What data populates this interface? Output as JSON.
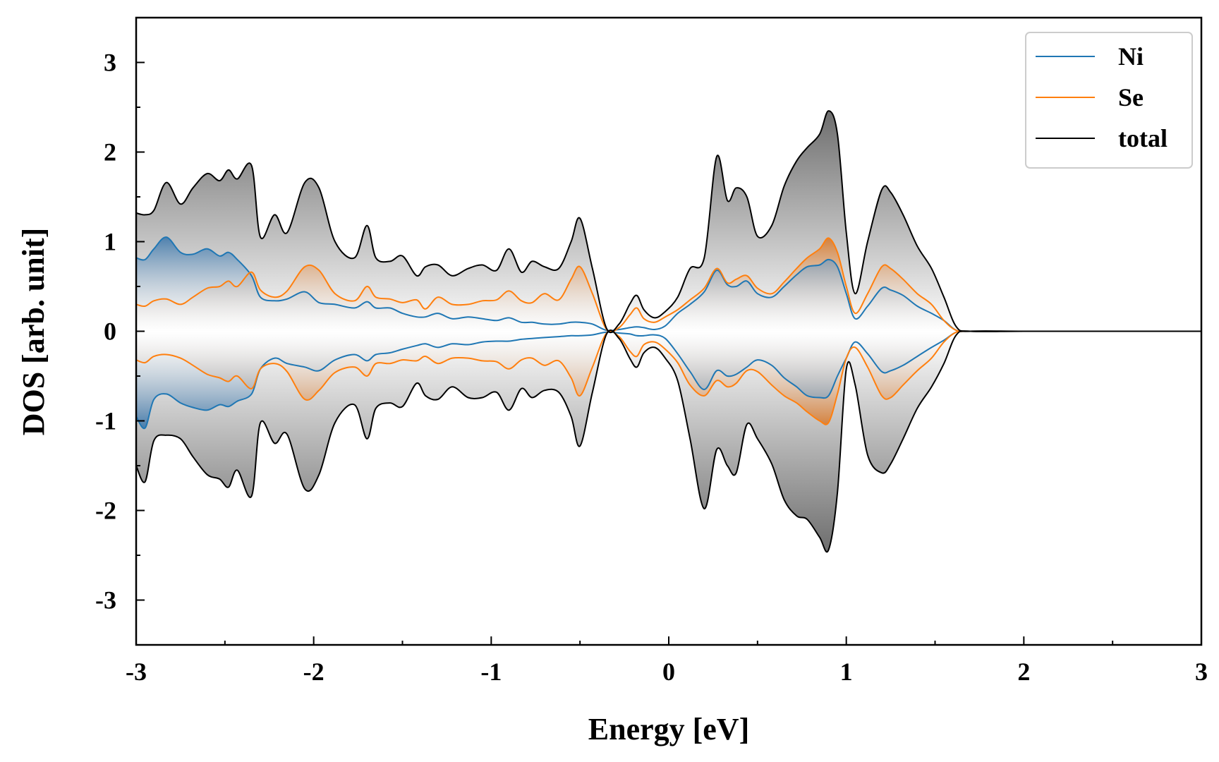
{
  "chart_data": {
    "type": "area",
    "title": "",
    "xlabel": "Energy [eV]",
    "ylabel": "DOS [arb. unit]",
    "xlim": [
      -3,
      3
    ],
    "ylim": [
      -3.5,
      3.5
    ],
    "xticks": [
      -3,
      -2,
      -1,
      0,
      1,
      2,
      3
    ],
    "xtick_labels": [
      "-3",
      "-2",
      "-1",
      "0",
      "1",
      "2",
      "3"
    ],
    "yticks": [
      -3,
      -2,
      -1,
      0,
      1,
      2,
      3
    ],
    "ytick_labels": [
      "-3",
      "-2",
      "-1",
      "0",
      "1",
      "2",
      "3"
    ],
    "legend_position": "top-right",
    "x": [
      -3.0,
      -2.95,
      -2.9,
      -2.83,
      -2.75,
      -2.68,
      -2.6,
      -2.53,
      -2.48,
      -2.43,
      -2.35,
      -2.3,
      -2.22,
      -2.15,
      -2.05,
      -1.97,
      -1.88,
      -1.77,
      -1.7,
      -1.65,
      -1.57,
      -1.5,
      -1.42,
      -1.37,
      -1.3,
      -1.22,
      -1.13,
      -1.05,
      -0.97,
      -0.9,
      -0.83,
      -0.77,
      -0.7,
      -0.62,
      -0.55,
      -0.5,
      -0.43,
      -0.35,
      -0.28,
      -0.22,
      -0.18,
      -0.14,
      -0.08,
      -0.02,
      0.05,
      0.12,
      0.2,
      0.27,
      0.33,
      0.38,
      0.44,
      0.5,
      0.58,
      0.65,
      0.72,
      0.78,
      0.85,
      0.9,
      0.95,
      1.0,
      1.05,
      1.12,
      1.2,
      1.25,
      1.32,
      1.4,
      1.48,
      1.55,
      1.62,
      1.7,
      2.0,
      2.5,
      3.0
    ],
    "series": [
      {
        "name": "Ni",
        "color": "#1f77b4",
        "up": [
          0.82,
          0.8,
          0.92,
          1.05,
          0.88,
          0.86,
          0.92,
          0.84,
          0.88,
          0.8,
          0.62,
          0.38,
          0.34,
          0.36,
          0.44,
          0.32,
          0.3,
          0.26,
          0.33,
          0.26,
          0.26,
          0.2,
          0.16,
          0.16,
          0.2,
          0.14,
          0.16,
          0.14,
          0.12,
          0.15,
          0.1,
          0.1,
          0.08,
          0.08,
          0.1,
          0.1,
          0.08,
          0.01,
          0.02,
          0.04,
          0.05,
          0.04,
          0.02,
          0.06,
          0.2,
          0.3,
          0.44,
          0.68,
          0.52,
          0.5,
          0.56,
          0.42,
          0.38,
          0.5,
          0.63,
          0.72,
          0.74,
          0.8,
          0.72,
          0.42,
          0.14,
          0.28,
          0.48,
          0.46,
          0.4,
          0.28,
          0.2,
          0.12,
          0.01,
          0.0,
          0.0,
          0.0,
          0.0
        ],
        "down": [
          -0.95,
          -1.08,
          -0.76,
          -0.7,
          -0.8,
          -0.85,
          -0.88,
          -0.82,
          -0.84,
          -0.78,
          -0.7,
          -0.42,
          -0.3,
          -0.36,
          -0.4,
          -0.44,
          -0.32,
          -0.26,
          -0.33,
          -0.26,
          -0.24,
          -0.2,
          -0.16,
          -0.14,
          -0.18,
          -0.14,
          -0.15,
          -0.12,
          -0.11,
          -0.11,
          -0.09,
          -0.08,
          -0.07,
          -0.06,
          -0.05,
          -0.05,
          -0.04,
          -0.01,
          -0.02,
          -0.03,
          -0.05,
          -0.05,
          -0.04,
          -0.08,
          -0.25,
          -0.45,
          -0.65,
          -0.44,
          -0.5,
          -0.48,
          -0.4,
          -0.32,
          -0.38,
          -0.52,
          -0.62,
          -0.72,
          -0.74,
          -0.72,
          -0.5,
          -0.3,
          -0.12,
          -0.25,
          -0.45,
          -0.44,
          -0.38,
          -0.28,
          -0.18,
          -0.1,
          -0.01,
          0.0,
          0.0,
          0.0,
          0.0
        ]
      },
      {
        "name": "Se",
        "color": "#ff7f0e",
        "up": [
          0.3,
          0.28,
          0.34,
          0.36,
          0.3,
          0.38,
          0.48,
          0.5,
          0.56,
          0.5,
          0.66,
          0.46,
          0.38,
          0.45,
          0.72,
          0.68,
          0.42,
          0.34,
          0.5,
          0.38,
          0.36,
          0.32,
          0.35,
          0.25,
          0.38,
          0.3,
          0.3,
          0.34,
          0.35,
          0.45,
          0.34,
          0.32,
          0.42,
          0.35,
          0.58,
          0.72,
          0.42,
          0.02,
          0.04,
          0.18,
          0.26,
          0.14,
          0.1,
          0.16,
          0.24,
          0.35,
          0.48,
          0.7,
          0.54,
          0.58,
          0.62,
          0.48,
          0.42,
          0.55,
          0.7,
          0.82,
          0.92,
          1.04,
          0.88,
          0.5,
          0.2,
          0.42,
          0.72,
          0.7,
          0.58,
          0.42,
          0.3,
          0.12,
          0.01,
          0.0,
          0.0,
          0.0,
          0.0
        ],
        "down": [
          -0.32,
          -0.35,
          -0.28,
          -0.26,
          -0.3,
          -0.38,
          -0.48,
          -0.52,
          -0.56,
          -0.5,
          -0.64,
          -0.42,
          -0.36,
          -0.45,
          -0.76,
          -0.66,
          -0.46,
          -0.4,
          -0.5,
          -0.36,
          -0.36,
          -0.32,
          -0.33,
          -0.28,
          -0.36,
          -0.3,
          -0.3,
          -0.33,
          -0.34,
          -0.42,
          -0.32,
          -0.3,
          -0.38,
          -0.33,
          -0.52,
          -0.72,
          -0.4,
          -0.02,
          -0.06,
          -0.22,
          -0.28,
          -0.15,
          -0.12,
          -0.2,
          -0.35,
          -0.6,
          -0.72,
          -0.55,
          -0.62,
          -0.58,
          -0.44,
          -0.45,
          -0.6,
          -0.72,
          -0.8,
          -0.9,
          -1.0,
          -1.02,
          -0.7,
          -0.3,
          -0.18,
          -0.4,
          -0.72,
          -0.74,
          -0.6,
          -0.44,
          -0.3,
          -0.12,
          -0.01,
          0.0,
          0.0,
          0.0,
          0.0
        ]
      },
      {
        "name": "total",
        "color": "#000000",
        "up": [
          1.32,
          1.3,
          1.35,
          1.66,
          1.42,
          1.6,
          1.76,
          1.68,
          1.8,
          1.7,
          1.85,
          1.05,
          1.3,
          1.1,
          1.66,
          1.6,
          1.0,
          0.82,
          1.18,
          0.82,
          0.78,
          0.84,
          0.62,
          0.72,
          0.74,
          0.62,
          0.7,
          0.74,
          0.68,
          0.92,
          0.66,
          0.78,
          0.72,
          0.7,
          1.0,
          1.26,
          0.7,
          0.03,
          0.08,
          0.3,
          0.4,
          0.24,
          0.15,
          0.22,
          0.38,
          0.7,
          0.82,
          1.95,
          1.46,
          1.6,
          1.5,
          1.06,
          1.18,
          1.62,
          1.9,
          2.05,
          2.2,
          2.46,
          2.2,
          1.1,
          0.42,
          1.0,
          1.58,
          1.55,
          1.3,
          0.95,
          0.7,
          0.38,
          0.05,
          0.0,
          0.0,
          0.0,
          0.0
        ],
        "down": [
          -1.5,
          -1.68,
          -1.22,
          -1.16,
          -1.2,
          -1.4,
          -1.6,
          -1.65,
          -1.74,
          -1.55,
          -1.84,
          -1.02,
          -1.25,
          -1.15,
          -1.76,
          -1.6,
          -1.02,
          -0.82,
          -1.2,
          -0.86,
          -0.8,
          -0.84,
          -0.58,
          -0.72,
          -0.76,
          -0.62,
          -0.74,
          -0.74,
          -0.68,
          -0.88,
          -0.64,
          -0.74,
          -0.66,
          -0.68,
          -0.95,
          -1.28,
          -0.68,
          -0.03,
          -0.08,
          -0.3,
          -0.4,
          -0.24,
          -0.18,
          -0.3,
          -0.55,
          -1.2,
          -1.98,
          -1.32,
          -1.5,
          -1.58,
          -1.04,
          -1.2,
          -1.48,
          -1.88,
          -2.06,
          -2.1,
          -2.3,
          -2.44,
          -1.8,
          -0.42,
          -0.6,
          -1.38,
          -1.58,
          -1.48,
          -1.2,
          -0.86,
          -0.62,
          -0.36,
          -0.04,
          0.0,
          0.0,
          0.0,
          0.0
        ]
      }
    ]
  }
}
